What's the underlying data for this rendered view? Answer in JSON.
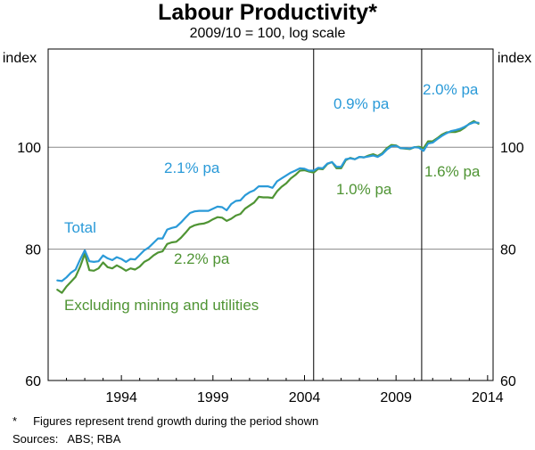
{
  "chart_data": {
    "type": "line",
    "title": "Labour Productivity*",
    "subtitle": "2009/10 = 100, log scale",
    "ylabel_left": "index",
    "ylabel_right": "index",
    "yscale": "log",
    "ylim": [
      60,
      124
    ],
    "xlim": [
      1990.0,
      2014.3
    ],
    "y_ticks": [
      60,
      80,
      100
    ],
    "y_tick_labels": [
      "60",
      "80",
      "100"
    ],
    "x_ticks": [
      1994,
      1999,
      2004,
      2009,
      2014
    ],
    "x_tick_labels": [
      "1994",
      "1999",
      "2004",
      "2009",
      "2014"
    ],
    "period_breaks": [
      2004.5,
      2010.4
    ],
    "colors": {
      "total": "#2a9ad8",
      "excluding": "#4f9434"
    },
    "series": [
      {
        "name": "Total",
        "key": "total",
        "x": [
          1990.5,
          1990.75,
          1991.0,
          1991.25,
          1991.5,
          1991.75,
          1992.0,
          1992.25,
          1992.5,
          1992.75,
          1993.0,
          1993.25,
          1993.5,
          1993.75,
          1994.0,
          1994.25,
          1994.5,
          1994.75,
          1995.0,
          1995.25,
          1995.5,
          1995.75,
          1996.0,
          1996.25,
          1996.5,
          1996.75,
          1997.0,
          1997.25,
          1997.5,
          1997.75,
          1998.0,
          1998.25,
          1998.5,
          1998.75,
          1999.0,
          1999.25,
          1999.5,
          1999.75,
          2000.0,
          2000.25,
          2000.5,
          2000.75,
          2001.0,
          2001.25,
          2001.5,
          2001.75,
          2002.0,
          2002.25,
          2002.5,
          2002.75,
          2003.0,
          2003.25,
          2003.5,
          2003.75,
          2004.0,
          2004.25,
          2004.5,
          2004.75,
          2005.0,
          2005.25,
          2005.5,
          2005.75,
          2006.0,
          2006.25,
          2006.5,
          2006.75,
          2007.0,
          2007.25,
          2007.5,
          2007.75,
          2008.0,
          2008.25,
          2008.5,
          2008.75,
          2009.0,
          2009.25,
          2009.5,
          2009.75,
          2010.0,
          2010.25,
          2010.5,
          2010.75,
          2011.0,
          2011.25,
          2011.5,
          2011.75,
          2012.0,
          2012.25,
          2012.5,
          2012.75,
          2013.0,
          2013.25,
          2013.5
        ],
        "values": [
          74.7,
          74.6,
          75.2,
          76.0,
          76.5,
          78.2,
          79.8,
          77.9,
          77.8,
          77.9,
          78.9,
          78.4,
          78.1,
          78.6,
          78.3,
          77.8,
          78.3,
          78.2,
          79.0,
          79.8,
          80.3,
          81.1,
          81.9,
          81.9,
          83.5,
          83.8,
          84.0,
          84.8,
          85.7,
          86.6,
          86.9,
          87.0,
          87.0,
          87.0,
          87.4,
          87.8,
          87.7,
          87.1,
          88.3,
          88.9,
          89.0,
          90.0,
          90.6,
          91.0,
          91.8,
          91.8,
          91.8,
          91.5,
          92.8,
          93.4,
          94.0,
          94.6,
          95.0,
          95.5,
          95.4,
          95.0,
          95.0,
          95.6,
          95.5,
          96.5,
          96.8,
          95.8,
          95.8,
          97.4,
          97.6,
          97.4,
          97.9,
          97.8,
          98.0,
          98.2,
          97.9,
          98.5,
          99.5,
          100.2,
          100.3,
          99.8,
          99.8,
          99.7,
          100.0,
          99.9,
          99.2,
          100.8,
          101.0,
          101.8,
          102.5,
          103.1,
          103.6,
          103.8,
          104.1,
          104.6,
          105.2,
          105.6,
          105.5
        ]
      },
      {
        "name": "Excluding mining and utilities",
        "key": "excluding",
        "x": [
          1990.5,
          1990.75,
          1991.0,
          1991.25,
          1991.5,
          1991.75,
          1992.0,
          1992.25,
          1992.5,
          1992.75,
          1993.0,
          1993.25,
          1993.5,
          1993.75,
          1994.0,
          1994.25,
          1994.5,
          1994.75,
          1995.0,
          1995.25,
          1995.5,
          1995.75,
          1996.0,
          1996.25,
          1996.5,
          1996.75,
          1997.0,
          1997.25,
          1997.5,
          1997.75,
          1998.0,
          1998.25,
          1998.5,
          1998.75,
          1999.0,
          1999.25,
          1999.5,
          1999.75,
          2000.0,
          2000.25,
          2000.5,
          2000.75,
          2001.0,
          2001.25,
          2001.5,
          2001.75,
          2002.0,
          2002.25,
          2002.5,
          2002.75,
          2003.0,
          2003.25,
          2003.5,
          2003.75,
          2004.0,
          2004.25,
          2004.5,
          2004.75,
          2005.0,
          2005.25,
          2005.5,
          2005.75,
          2006.0,
          2006.25,
          2006.5,
          2006.75,
          2007.0,
          2007.25,
          2007.5,
          2007.75,
          2008.0,
          2008.25,
          2008.5,
          2008.75,
          2009.0,
          2009.25,
          2009.5,
          2009.75,
          2010.0,
          2010.25,
          2010.5,
          2010.75,
          2011.0,
          2011.25,
          2011.5,
          2011.75,
          2012.0,
          2012.25,
          2012.5,
          2012.75,
          2013.0,
          2013.25,
          2013.5
        ],
        "values": [
          73.2,
          72.7,
          73.7,
          74.5,
          75.3,
          77.0,
          79.2,
          76.4,
          76.3,
          76.7,
          77.7,
          76.9,
          76.7,
          77.2,
          76.8,
          76.3,
          76.7,
          76.5,
          77.0,
          77.8,
          78.2,
          78.9,
          79.4,
          79.6,
          80.9,
          81.2,
          81.3,
          82.0,
          82.9,
          83.9,
          84.3,
          84.5,
          84.6,
          84.9,
          85.4,
          85.8,
          85.7,
          85.1,
          85.5,
          86.1,
          86.4,
          87.4,
          88.0,
          88.6,
          89.7,
          89.6,
          89.6,
          89.5,
          90.8,
          91.7,
          92.4,
          93.4,
          94.1,
          95.0,
          95.1,
          94.8,
          94.6,
          95.4,
          95.3,
          96.4,
          96.8,
          95.5,
          95.5,
          97.2,
          97.7,
          97.4,
          97.9,
          97.8,
          98.2,
          98.5,
          98.1,
          98.7,
          99.8,
          100.5,
          100.4,
          99.8,
          99.7,
          99.6,
          100.0,
          100.1,
          99.8,
          101.3,
          101.3,
          102.0,
          102.8,
          103.3,
          103.4,
          103.4,
          103.7,
          104.4,
          105.3,
          105.9,
          105.3
        ]
      }
    ],
    "legend_labels": [
      {
        "key": "total",
        "text": "Total"
      },
      {
        "key": "excluding",
        "text": "Excluding mining and utilities"
      }
    ],
    "annotations": [
      {
        "text": "2.1% pa",
        "series": "total",
        "period": "1990s"
      },
      {
        "text": "2.2% pa",
        "series": "excluding",
        "period": "1990s"
      },
      {
        "text": "0.9% pa",
        "series": "total",
        "period": "2004–2010"
      },
      {
        "text": "1.0% pa",
        "series": "excluding",
        "period": "2004–2010"
      },
      {
        "text": "2.0% pa",
        "series": "total",
        "period": "2010–2014"
      },
      {
        "text": "1.6% pa",
        "series": "excluding",
        "period": "2010–2014"
      }
    ]
  },
  "footnote": "*     Figures represent trend growth during the period shown",
  "sources": "Sources:   ABS; RBA"
}
